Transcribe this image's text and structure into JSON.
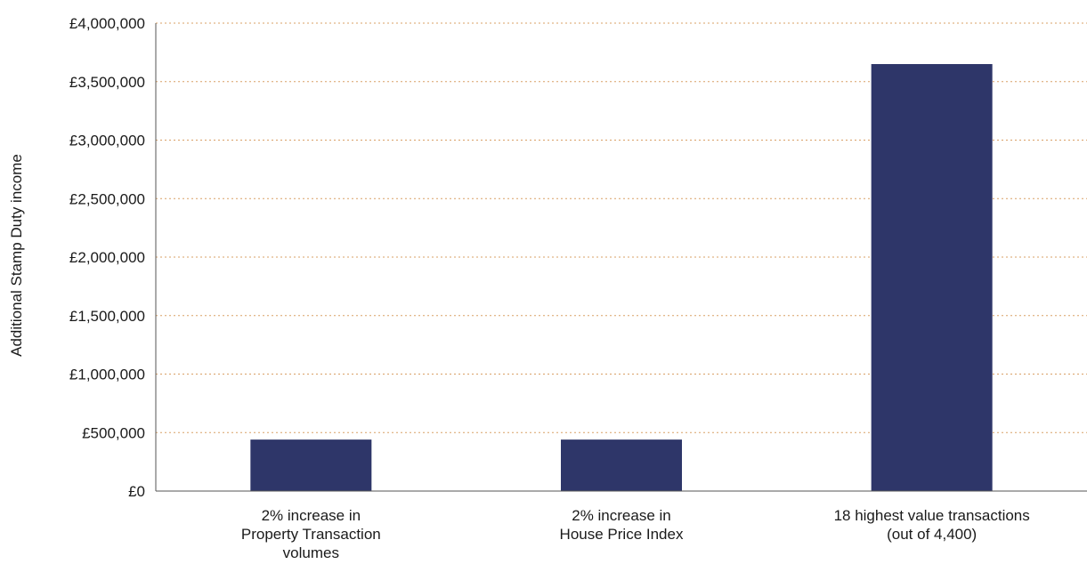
{
  "chart_data": {
    "type": "bar",
    "title": "",
    "xlabel": "",
    "ylabel": "Additional Stamp Duty income",
    "categories": [
      [
        "2% increase in",
        "Property Transaction",
        "volumes"
      ],
      [
        "2% increase in",
        "House Price Index"
      ],
      [
        "18 highest value transactions",
        "(out of 4,400)"
      ]
    ],
    "values": [
      440000,
      440000,
      3650000
    ],
    "ylim": [
      0,
      4000000
    ],
    "yticks": [
      {
        "value": 0,
        "label": "£0"
      },
      {
        "value": 500000,
        "label": "£500,000"
      },
      {
        "value": 1000000,
        "label": "£1,000,000"
      },
      {
        "value": 1500000,
        "label": "£1,500,000"
      },
      {
        "value": 2000000,
        "label": "£2,000,000"
      },
      {
        "value": 2500000,
        "label": "£2,500,000"
      },
      {
        "value": 3000000,
        "label": "£3,000,000"
      },
      {
        "value": 3500000,
        "label": "£3,500,000"
      },
      {
        "value": 4000000,
        "label": "£4,000,000"
      }
    ],
    "grid": true,
    "legend": "none",
    "colors": {
      "bar": "#2e3669",
      "grid": "#d9a066",
      "axis": "#555555"
    }
  }
}
